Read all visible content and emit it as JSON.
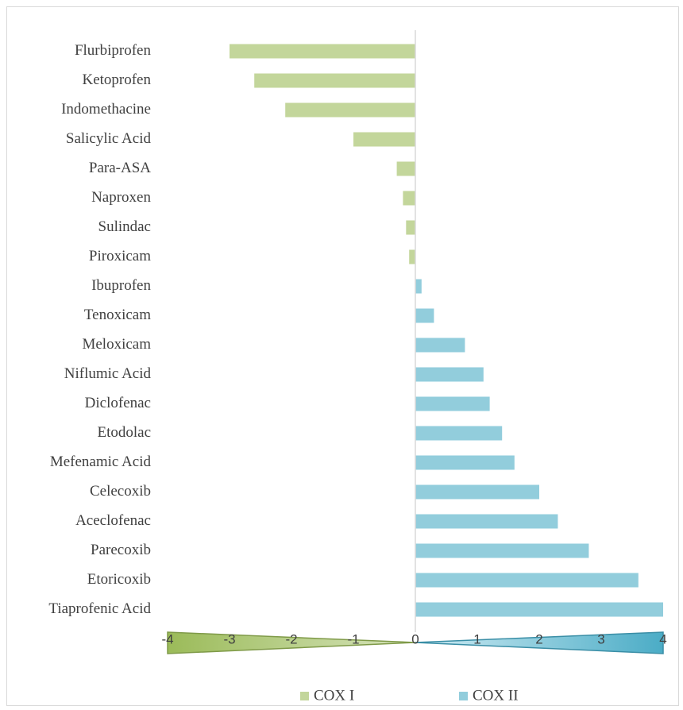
{
  "chart_data": {
    "type": "bar",
    "orientation": "horizontal",
    "categories": [
      "Flurbiprofen",
      "Ketoprofen",
      "Indomethacine",
      "Salicylic Acid",
      "Para-ASA",
      "Naproxen",
      "Sulindac",
      "Piroxicam",
      "Ibuprofen",
      "Tenoxicam",
      "Meloxicam",
      "Niflumic Acid",
      "Diclofenac",
      "Etodolac",
      "Mefenamic Acid",
      "Celecoxib",
      "Aceclofenac",
      "Parecoxib",
      "Etoricoxib",
      "Tiaprofenic Acid"
    ],
    "series": [
      {
        "name": "COX I",
        "color": "#c3d69b",
        "values": [
          -3.0,
          -2.6,
          -2.1,
          -1.0,
          -0.3,
          -0.2,
          -0.15,
          -0.1,
          null,
          null,
          null,
          null,
          null,
          null,
          null,
          null,
          null,
          null,
          null,
          null
        ]
      },
      {
        "name": "COX II",
        "color": "#92cddc",
        "values": [
          null,
          null,
          null,
          null,
          null,
          null,
          null,
          null,
          0.1,
          0.3,
          0.8,
          1.1,
          1.2,
          1.4,
          1.6,
          2.0,
          2.3,
          2.8,
          3.6,
          4.0
        ]
      }
    ],
    "xlim": [
      -4,
      4
    ],
    "xticks": [
      -4,
      -3,
      -2,
      -1,
      0,
      1,
      2,
      3,
      4
    ],
    "grid": false,
    "legend": "bottom"
  }
}
